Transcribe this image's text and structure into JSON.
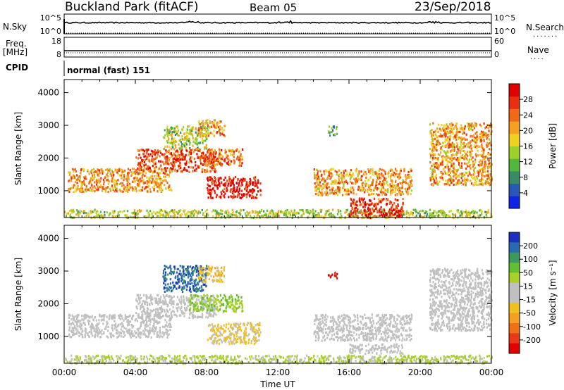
{
  "header": {
    "title": "Buckland Park (fitACF)",
    "beam": "Beam 05",
    "date": "23/Sep/2018"
  },
  "noise_panel": {
    "left_label": "N.Sky",
    "right_label": "N.Search",
    "left_ticks": [
      "10^5",
      "10^0"
    ],
    "right_ticks": [
      "10^5",
      "10^0"
    ]
  },
  "freq_panel": {
    "left_label": "Freq.",
    "left_unit": "[MHz]",
    "left_ticks": [
      "18",
      "8"
    ],
    "right_label": "Nave",
    "right_ticks": [
      "60",
      "0"
    ]
  },
  "cpid_panel": {
    "label": "CPID",
    "text": "normal (fast) 151"
  },
  "time_axis": {
    "title": "Time UT",
    "ticks": [
      "00:00",
      "04:00",
      "08:00",
      "12:00",
      "16:00",
      "20:00",
      "00:00"
    ]
  },
  "power_panel": {
    "ylabel": "Slant Range [km]",
    "yticks": [
      "1000",
      "2000",
      "3000",
      "4000"
    ],
    "colorbar_label": "Power [dB]",
    "colorbar_ticks": [
      "4",
      "8",
      "12",
      "16",
      "20",
      "24",
      "28"
    ],
    "colors": [
      "#1024e6",
      "#2a58b8",
      "#3a8a6a",
      "#52b83c",
      "#9ed02a",
      "#f0d020",
      "#f5a020",
      "#f06818",
      "#e83010",
      "#e00000"
    ]
  },
  "velocity_panel": {
    "ylabel": "Slant Range [km]",
    "yticks": [
      "1000",
      "2000",
      "3000",
      "4000"
    ],
    "colorbar_label": "Velocity [m s⁻¹]",
    "colorbar_ticks": [
      "200",
      "100",
      "50",
      "15",
      "-15",
      "-50",
      "-100",
      "-200"
    ],
    "colors": [
      "#1a30c0",
      "#2a6ab0",
      "#3a9a5a",
      "#62c030",
      "#a8d028",
      "#c0c0c0",
      "#c0c0c0",
      "#f0c020",
      "#f5a020",
      "#f07018",
      "#e83818",
      "#e00000"
    ]
  },
  "chart_data": [
    {
      "type": "heatmap",
      "title": "Power",
      "xlabel": "Time UT",
      "ylabel": "Slant Range [km]",
      "x_range_hours": [
        0,
        24
      ],
      "ylim": [
        180,
        4400
      ],
      "colorbar": {
        "label": "Power [dB]",
        "range": [
          0,
          30
        ]
      },
      "echo_regions": [
        {
          "t_start": 0.0,
          "t_end": 24.0,
          "r_start": 200,
          "r_end": 450,
          "value": 14
        },
        {
          "t_start": 0.2,
          "t_end": 6.0,
          "r_start": 1000,
          "r_end": 1700,
          "value": 20
        },
        {
          "t_start": 4.0,
          "t_end": 8.5,
          "r_start": 1600,
          "r_end": 2300,
          "value": 24
        },
        {
          "t_start": 5.5,
          "t_end": 8.0,
          "r_start": 2300,
          "r_end": 3000,
          "value": 14
        },
        {
          "t_start": 7.5,
          "t_end": 9.0,
          "r_start": 2700,
          "r_end": 3200,
          "value": 20
        },
        {
          "t_start": 8.0,
          "t_end": 10.0,
          "r_start": 1800,
          "r_end": 2300,
          "value": 22
        },
        {
          "t_start": 8.0,
          "t_end": 11.0,
          "r_start": 800,
          "r_end": 1450,
          "value": 28
        },
        {
          "t_start": 14.8,
          "t_end": 15.3,
          "r_start": 2700,
          "r_end": 3000,
          "value": 10
        },
        {
          "t_start": 14.0,
          "t_end": 19.5,
          "r_start": 900,
          "r_end": 1700,
          "value": 20
        },
        {
          "t_start": 16.0,
          "t_end": 19.0,
          "r_start": 200,
          "r_end": 800,
          "value": 26
        },
        {
          "t_start": 20.5,
          "t_end": 24.0,
          "r_start": 1200,
          "r_end": 3100,
          "value": 20
        }
      ]
    },
    {
      "type": "heatmap",
      "title": "Velocity",
      "xlabel": "Time UT",
      "ylabel": "Slant Range [km]",
      "x_range_hours": [
        0,
        24
      ],
      "ylim": [
        180,
        4400
      ],
      "colorbar": {
        "label": "Velocity [m s⁻¹]",
        "range": [
          -200,
          200
        ]
      },
      "echo_regions": [
        {
          "t_start": 0.0,
          "t_end": 24.0,
          "r_start": 200,
          "r_end": 450,
          "value": 40
        },
        {
          "t_start": 0.2,
          "t_end": 6.0,
          "r_start": 1000,
          "r_end": 1700,
          "value": 0
        },
        {
          "t_start": 4.0,
          "t_end": 8.5,
          "r_start": 1600,
          "r_end": 2300,
          "value": 0
        },
        {
          "t_start": 5.5,
          "t_end": 8.0,
          "r_start": 2400,
          "r_end": 3200,
          "value": 150
        },
        {
          "t_start": 7.5,
          "t_end": 9.0,
          "r_start": 2700,
          "r_end": 3200,
          "value": -50
        },
        {
          "t_start": 7.0,
          "t_end": 10.0,
          "r_start": 1800,
          "r_end": 2300,
          "value": 60
        },
        {
          "t_start": 8.0,
          "t_end": 11.0,
          "r_start": 800,
          "r_end": 1450,
          "value": -40
        },
        {
          "t_start": 14.8,
          "t_end": 15.3,
          "r_start": 2800,
          "r_end": 3000,
          "value": -180
        },
        {
          "t_start": 14.0,
          "t_end": 19.5,
          "r_start": 900,
          "r_end": 1700,
          "value": 0
        },
        {
          "t_start": 16.0,
          "t_end": 19.0,
          "r_start": 500,
          "r_end": 800,
          "value": 0
        },
        {
          "t_start": 20.5,
          "t_end": 24.0,
          "r_start": 1200,
          "r_end": 3100,
          "value": 0
        }
      ]
    }
  ]
}
